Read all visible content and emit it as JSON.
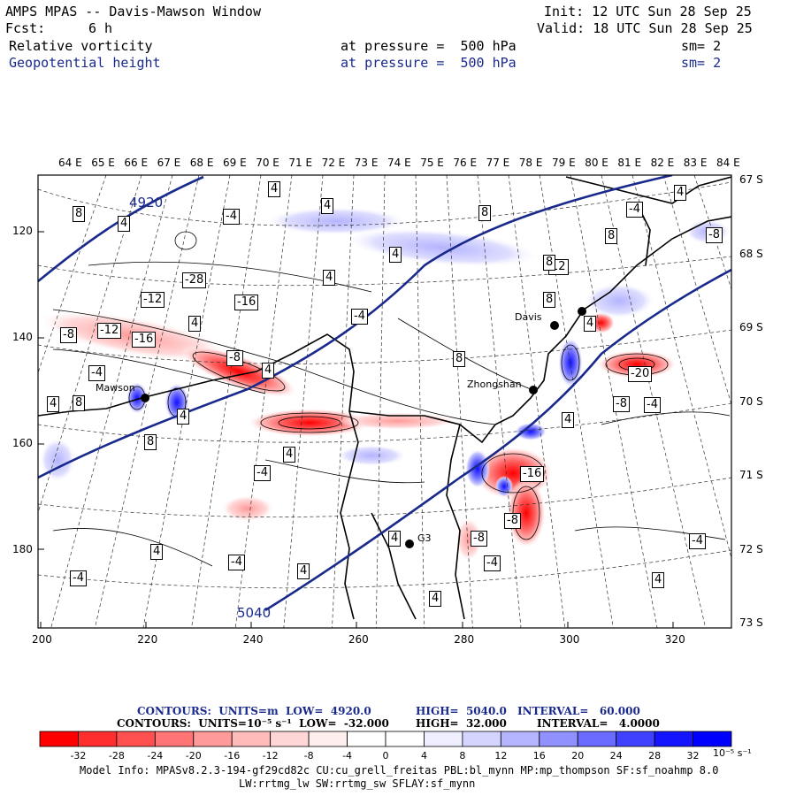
{
  "header": {
    "title": "AMPS MPAS -- Davis-Mawson Window",
    "init": "Init: 12 UTC Sun 28 Sep 25",
    "fcst_label": "Fcst:",
    "fcst_value": "6 h",
    "valid": "Valid: 18 UTC Sun 28 Sep 25",
    "field1_name": "Relative vorticity",
    "field1_level": "at pressure =  500 hPa",
    "field1_sm": "sm= 2",
    "field2_name": "Geopotential height",
    "field2_level": "at pressure =  500 hPa",
    "field2_sm": "sm= 2"
  },
  "map": {
    "top_lon_labels": [
      "64 E",
      "65 E",
      "66 E",
      "67 E",
      "68 E",
      "69 E",
      "70 E",
      "71 E",
      "72 E",
      "73 E",
      "74 E",
      "75 E",
      "76 E",
      "77 E",
      "78 E",
      "79 E",
      "80 E",
      "81 E",
      "82 E",
      "83 E",
      "84 E"
    ],
    "right_lat_labels": [
      "67 S",
      "68 S",
      "69 S",
      "70 S",
      "71 S",
      "72 S",
      "73 S"
    ],
    "y_ticks": [
      "120",
      "140",
      "160",
      "180"
    ],
    "x_ticks": [
      "200",
      "220",
      "240",
      "260",
      "280",
      "300",
      "320"
    ],
    "stations": [
      "Mawson",
      "Davis",
      "Zhongshan",
      "G3"
    ],
    "height_labels": [
      "4920",
      "5040"
    ],
    "vort_labels": [
      "8",
      "4",
      "4",
      "-4",
      "4",
      "8",
      "-4",
      "4",
      "8",
      "-8",
      "-8",
      "-12",
      "-16",
      "-8",
      "4",
      "-4",
      "-28",
      "-16",
      "-12",
      "4",
      "-4",
      "4",
      "8",
      "12",
      "8",
      "4",
      "8",
      "4",
      "8",
      "4",
      "-4",
      "-20",
      "-8",
      "-4",
      "4",
      "-16",
      "-8",
      "-8",
      "-4",
      "4",
      "4",
      "-4",
      "-4",
      "4",
      "4",
      "8",
      "4",
      "4",
      "-4",
      "4"
    ]
  },
  "legend": {
    "line1_contours": "CONTOURS:  UNITS=m  LOW=  4920.0",
    "line1_high": "HIGH=  5040.0",
    "line1_interval": "INTERVAL=   60.000",
    "line2_contours": "CONTOURS:  UNITS=10⁻⁵ s⁻¹  LOW=  -32.000",
    "line2_high": "HIGH=  32.000",
    "line2_interval": "INTERVAL=   4.0000",
    "colorbar_ticks": [
      "-32",
      "-28",
      "-24",
      "-20",
      "-16",
      "-12",
      "-8",
      "-4",
      "0",
      "4",
      "8",
      "12",
      "16",
      "20",
      "24",
      "28",
      "32"
    ],
    "colorbar_units": "10⁻⁵ s⁻¹",
    "colorbar_colors": [
      "#ff0000",
      "#ff2e2e",
      "#ff5050",
      "#ff7474",
      "#ff9a9a",
      "#ffbaba",
      "#ffd6d6",
      "#ffeeee",
      "#ffffff",
      "#ffffff",
      "#eeeeff",
      "#d4d4ff",
      "#b4b4ff",
      "#9090ff",
      "#6a6aff",
      "#4040ff",
      "#1414ff",
      "#0000ff"
    ]
  },
  "footer": {
    "model_info": "Model Info: MPASv8.2.3-194-gf29cd82c CU:cu_grell_freitas PBL:bl_mynn MP:mp_thompson SF:sf_noahmp 8.0",
    "model_info2": "LW:rrtmg_lw SW:rrtmg_sw SFLAY:sf_mynn"
  },
  "colors": {
    "height_contour": "#1a2a8c",
    "header_blue": "#1a2a8c",
    "negative_vort": "#ff0000",
    "positive_vort": "#0000ff"
  }
}
